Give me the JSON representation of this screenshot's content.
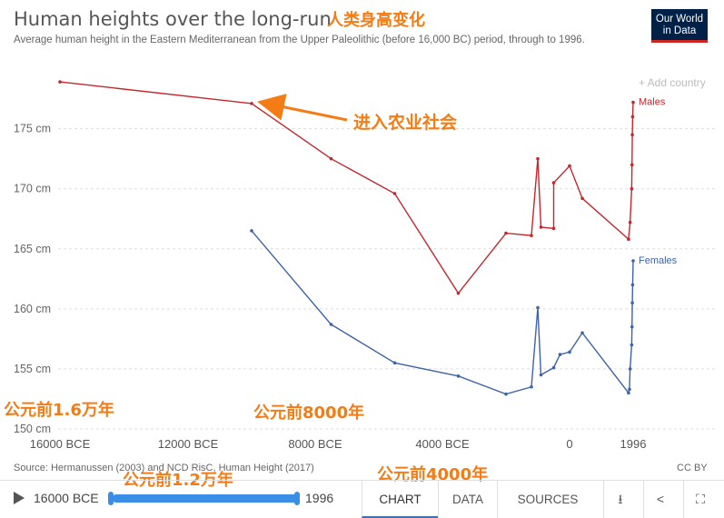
{
  "header": {
    "title": "Human heights over the long-run",
    "subtitle": "Average human height in the Eastern Mediterranean from the Upper Paleolithic (before 16,000 BC) period, through to 1996.",
    "logo_line1": "Our World",
    "logo_line2": "in Data",
    "add_country": "+ Add country"
  },
  "annotations": {
    "title_cn": "人类身高变化",
    "agri": "进入农业社会",
    "bc16000": "公元前1.6万年",
    "bc8000": "公元前8000年",
    "bc12000": "公元前1.2万年",
    "bc4000": "公元前4000年"
  },
  "colors": {
    "males": "#c3282f",
    "females": "#3d63a8",
    "annotation": "#f57c14",
    "logo": "#002147"
  },
  "chart_data": {
    "type": "line",
    "title": "Human heights over the long-run",
    "ylim": [
      150,
      178
    ],
    "xlim": [
      -16000,
      1996
    ],
    "y_ticks": [
      150,
      155,
      160,
      165,
      170,
      175
    ],
    "y_tick_labels": [
      "150 cm",
      "155 cm",
      "160 cm",
      "165 cm",
      "170 cm",
      "175 cm"
    ],
    "x_tick_labels": [
      {
        "value": -16000,
        "label": "16000 BCE"
      },
      {
        "value": -12000,
        "label": "12000 BCE"
      },
      {
        "value": -8000,
        "label": "8000 BCE"
      },
      {
        "value": -4000,
        "label": "4000 BCE"
      },
      {
        "value": 0,
        "label": "0"
      },
      {
        "value": 1996,
        "label": "1996"
      }
    ],
    "grid": "horizontal",
    "series": [
      {
        "name": "Males",
        "x": [
          -16000,
          -10000,
          -7500,
          -5500,
          -3500,
          -2000,
          -1200,
          -1000,
          -900,
          -500,
          -500,
          0,
          400,
          1850,
          1900,
          1950,
          1960,
          1970,
          1980,
          1996
        ],
        "y": [
          178.9,
          177.1,
          172.5,
          169.6,
          161.3,
          166.3,
          166.1,
          172.5,
          166.8,
          166.7,
          170.5,
          171.9,
          169.2,
          165.8,
          167.2,
          170.0,
          172.0,
          174.5,
          176.0,
          177.2
        ]
      },
      {
        "name": "Females",
        "x": [
          -10000,
          -7500,
          -5500,
          -3500,
          -2000,
          -1200,
          -1000,
          -900,
          -500,
          -300,
          0,
          400,
          1850,
          1880,
          1900,
          1950,
          1960,
          1970,
          1980,
          1996
        ],
        "y": [
          166.5,
          158.7,
          155.5,
          154.4,
          152.9,
          153.5,
          160.1,
          154.5,
          155.1,
          156.2,
          156.4,
          158.0,
          153.0,
          153.3,
          155.0,
          157.0,
          158.5,
          160.5,
          162.0,
          164.0
        ]
      }
    ]
  },
  "footer": {
    "source": "Source: Hermanussen (2003) and NCD RisC, Human Height (2017)",
    "license": "CC BY"
  },
  "controls": {
    "timeline_start": "16000 BCE",
    "timeline_end": "1996",
    "tabs": [
      "CHART",
      "DATA",
      "SOURCES"
    ]
  }
}
